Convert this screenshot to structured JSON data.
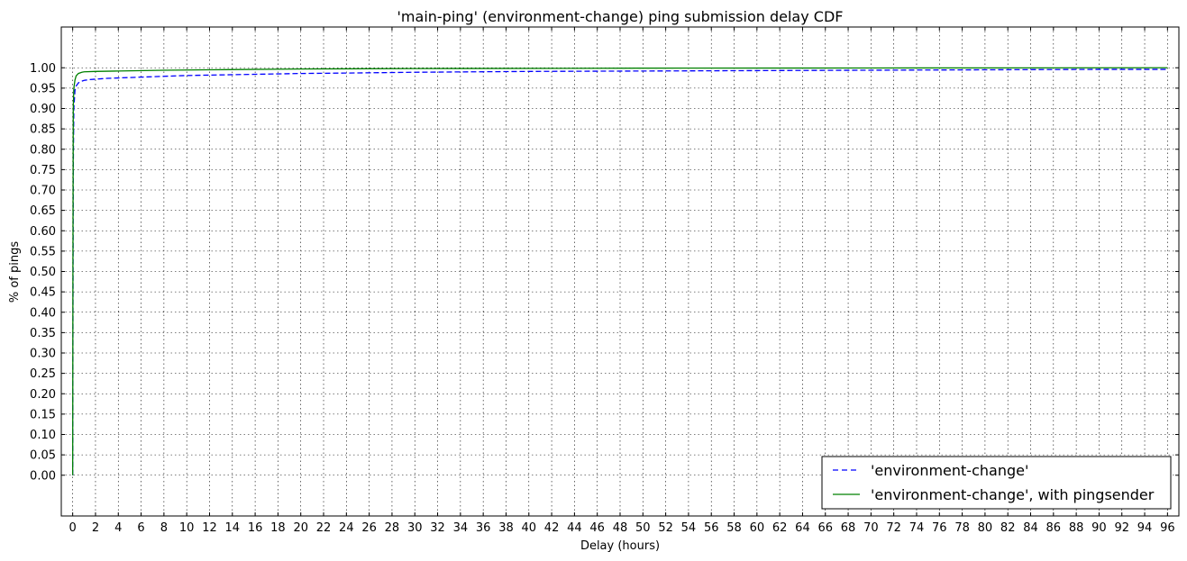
{
  "chart_data": {
    "type": "line",
    "title": "'main-ping' (environment-change) ping submission delay CDF",
    "xlabel": "Delay (hours)",
    "ylabel": "% of pings",
    "xlim": [
      -1,
      97
    ],
    "ylim": [
      -0.1,
      1.1
    ],
    "xticks": [
      0,
      2,
      4,
      6,
      8,
      10,
      12,
      14,
      16,
      18,
      20,
      22,
      24,
      26,
      28,
      30,
      32,
      34,
      36,
      38,
      40,
      42,
      44,
      46,
      48,
      50,
      52,
      54,
      56,
      58,
      60,
      62,
      64,
      66,
      68,
      70,
      72,
      74,
      76,
      78,
      80,
      82,
      84,
      86,
      88,
      90,
      92,
      94,
      96
    ],
    "yticks": [
      "0.00",
      "0.05",
      "0.10",
      "0.15",
      "0.20",
      "0.25",
      "0.30",
      "0.35",
      "0.40",
      "0.45",
      "0.50",
      "0.55",
      "0.60",
      "0.65",
      "0.70",
      "0.75",
      "0.80",
      "0.85",
      "0.90",
      "0.95",
      "1.00"
    ],
    "grid": true,
    "legend_position": "lower-right",
    "series": [
      {
        "name": "'environment-change'",
        "color": "#0000ff",
        "style": "dashed",
        "x": [
          0,
          0.02,
          0.05,
          0.1,
          0.2,
          0.3,
          0.5,
          0.8,
          1,
          1.5,
          2,
          3,
          4,
          6,
          8,
          10,
          12,
          16,
          20,
          24,
          30,
          40,
          50,
          60,
          70,
          80,
          90,
          96
        ],
        "y": [
          0,
          0.3,
          0.75,
          0.9,
          0.945,
          0.955,
          0.963,
          0.967,
          0.969,
          0.971,
          0.972,
          0.974,
          0.975,
          0.977,
          0.979,
          0.981,
          0.982,
          0.984,
          0.986,
          0.987,
          0.989,
          0.991,
          0.992,
          0.993,
          0.994,
          0.995,
          0.996,
          0.996
        ]
      },
      {
        "name": "'environment-change', with pingsender",
        "color": "#008000",
        "style": "solid",
        "x": [
          0,
          0.02,
          0.05,
          0.1,
          0.2,
          0.3,
          0.5,
          0.8,
          1,
          2,
          4,
          8,
          12,
          20,
          30,
          50,
          70,
          96
        ],
        "y": [
          0,
          0.5,
          0.9,
          0.95,
          0.97,
          0.98,
          0.986,
          0.989,
          0.99,
          0.991,
          0.992,
          0.994,
          0.995,
          0.997,
          0.998,
          0.999,
          0.9995,
          1.0
        ]
      }
    ]
  }
}
